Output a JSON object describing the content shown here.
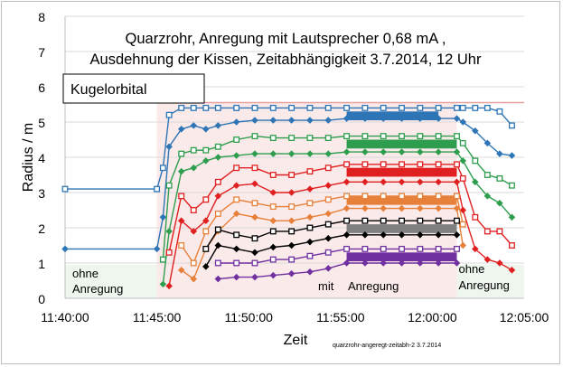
{
  "chart_data": {
    "type": "line",
    "title_line1": "Quarzrohr, Anregung mit Lautsprecher 0,68 mA ,",
    "title_line2": "Ausdehnung der Kissen, Zeitabhängigkeit 3.7.2014, 12 Uhr",
    "inset_label": "Kugelorbital",
    "xlabel": "Zeit",
    "ylabel": "Radius / m",
    "footnote": "quarzrohr-angeregt-zeitabh-2  3.7.2014",
    "xlim": [
      "11:40:00",
      "12:05:00"
    ],
    "x_ticks": [
      "11:40:00",
      "11:45:00",
      "11:50:00",
      "11:55:00",
      "12:00:00",
      "12:05:00"
    ],
    "ylim": [
      0,
      8
    ],
    "y_ticks": [
      "0",
      "1",
      "2",
      "3",
      "4",
      "5",
      "6",
      "7",
      "8"
    ],
    "grid": "horizontal",
    "regions": [
      {
        "label_lines": [
          "ohne",
          "Anregung"
        ],
        "from": "11:40:00",
        "to": "11:45:00",
        "color": "#eef6ee"
      },
      {
        "label_lines": [
          "mit",
          "Anregung"
        ],
        "from": "11:45:00",
        "to": "12:01:20",
        "color": "#fbeaea"
      },
      {
        "label_lines": [
          "ohne",
          "Anregung"
        ],
        "from": "12:01:20",
        "to": "12:05:00",
        "color": "#eef6ee"
      }
    ],
    "reference_line": {
      "y": 5.55,
      "color": "#e8a0a0"
    },
    "series": [
      {
        "color": "#2e75b6",
        "marker": "square",
        "x": [
          "11:40:00",
          "11:45:00",
          "11:45:20",
          "11:45:40",
          "11:46:20",
          "11:47:00",
          "11:47:40",
          "11:48:20",
          "11:49:20",
          "11:50:20",
          "11:51:20",
          "11:52:20",
          "11:53:20",
          "11:54:20",
          "11:55:20",
          "11:56:20",
          "11:57:20",
          "11:58:20",
          "11:59:20",
          "12:00:20",
          "12:01:20",
          "12:01:40",
          "12:02:20",
          "12:03:00",
          "12:03:40",
          "12:04:20"
        ],
        "y": [
          3.1,
          3.1,
          3.7,
          5.2,
          5.4,
          5.4,
          5.4,
          5.4,
          5.4,
          5.4,
          5.4,
          5.4,
          5.4,
          5.4,
          5.4,
          5.4,
          5.4,
          5.4,
          5.4,
          5.4,
          5.4,
          5.4,
          5.4,
          5.4,
          5.3,
          4.9
        ]
      },
      {
        "color": "#2e75b6",
        "marker": "diamond",
        "x": [
          "11:40:00",
          "11:45:00",
          "11:45:20",
          "11:45:40",
          "11:46:20",
          "11:47:00",
          "11:47:40",
          "11:48:20",
          "11:49:20",
          "11:50:20",
          "11:51:20",
          "11:52:20",
          "11:53:20",
          "11:54:20",
          "11:55:20",
          "11:56:20",
          "11:57:20",
          "11:58:20",
          "11:59:20",
          "12:00:20",
          "12:01:20",
          "12:01:40",
          "12:02:20",
          "12:03:00",
          "12:03:40",
          "12:04:20"
        ],
        "y": [
          1.4,
          1.4,
          2.3,
          4.3,
          4.8,
          4.9,
          4.8,
          4.9,
          5.0,
          5.05,
          5.05,
          5.05,
          5.05,
          5.05,
          5.1,
          5.1,
          5.1,
          5.1,
          5.1,
          5.1,
          5.1,
          5.0,
          4.75,
          4.4,
          4.1,
          4.05
        ]
      },
      {
        "color": "#2e9e4e",
        "marker": "square",
        "x": [
          "11:45:20",
          "11:45:40",
          "11:46:20",
          "11:47:00",
          "11:47:40",
          "11:48:20",
          "11:49:20",
          "11:50:20",
          "11:51:20",
          "11:52:20",
          "11:53:20",
          "11:54:20",
          "11:55:20",
          "11:56:20",
          "11:57:20",
          "11:58:20",
          "11:59:20",
          "12:00:20",
          "12:01:20",
          "12:01:40",
          "12:02:20",
          "12:03:00",
          "12:03:40",
          "12:04:20"
        ],
        "y": [
          1.1,
          3.2,
          4.1,
          4.2,
          4.2,
          4.3,
          4.5,
          4.6,
          4.55,
          4.55,
          4.55,
          4.55,
          4.6,
          4.6,
          4.6,
          4.6,
          4.6,
          4.6,
          4.6,
          4.4,
          3.9,
          3.5,
          3.4,
          3.2
        ]
      },
      {
        "color": "#2e9e4e",
        "marker": "diamond",
        "x": [
          "11:45:20",
          "11:45:40",
          "11:46:20",
          "11:47:00",
          "11:47:40",
          "11:48:20",
          "11:49:20",
          "11:50:20",
          "11:51:20",
          "11:52:20",
          "11:53:20",
          "11:54:20",
          "11:55:20",
          "11:56:20",
          "11:57:20",
          "11:58:20",
          "11:59:20",
          "12:00:20",
          "12:01:20",
          "12:01:40",
          "12:02:20",
          "12:03:00",
          "12:03:40",
          "12:04:20"
        ],
        "y": [
          0.4,
          1.9,
          3.6,
          3.7,
          3.9,
          4.0,
          4.05,
          4.1,
          4.1,
          4.1,
          4.1,
          4.1,
          4.15,
          4.15,
          4.15,
          4.15,
          4.15,
          4.15,
          4.15,
          3.9,
          3.3,
          2.9,
          2.7,
          2.3
        ]
      },
      {
        "color": "#e02020",
        "marker": "square",
        "x": [
          "11:45:40",
          "11:46:20",
          "11:47:00",
          "11:47:40",
          "11:48:20",
          "11:49:20",
          "11:50:20",
          "11:51:20",
          "11:52:20",
          "11:53:20",
          "11:54:20",
          "11:55:20",
          "11:56:20",
          "11:57:20",
          "11:58:20",
          "11:59:20",
          "12:00:20",
          "12:01:20",
          "12:01:40",
          "12:02:20",
          "12:03:00",
          "12:03:40",
          "12:04:20"
        ],
        "y": [
          1.3,
          2.9,
          2.5,
          2.8,
          3.3,
          3.7,
          3.7,
          3.5,
          3.5,
          3.6,
          3.7,
          3.8,
          3.8,
          3.8,
          3.8,
          3.8,
          3.8,
          3.8,
          3.4,
          2.3,
          1.9,
          1.9,
          1.5
        ]
      },
      {
        "color": "#e02020",
        "marker": "diamond",
        "x": [
          "11:45:40",
          "11:46:20",
          "11:47:00",
          "11:47:40",
          "11:48:20",
          "11:49:20",
          "11:50:20",
          "11:51:20",
          "11:52:20",
          "11:53:20",
          "11:54:20",
          "11:55:20",
          "11:56:20",
          "11:57:20",
          "11:58:20",
          "11:59:20",
          "12:00:20",
          "12:01:20",
          "12:01:40",
          "12:02:20",
          "12:03:00",
          "12:03:40",
          "12:04:20"
        ],
        "y": [
          0.35,
          2.2,
          1.9,
          2.2,
          2.9,
          3.2,
          3.25,
          3.0,
          3.0,
          3.1,
          3.2,
          3.3,
          3.3,
          3.3,
          3.3,
          3.3,
          3.3,
          3.3,
          2.5,
          1.4,
          1.1,
          1.0,
          0.8
        ]
      },
      {
        "color": "#e6803a",
        "marker": "square",
        "x": [
          "11:46:20",
          "11:47:00",
          "11:47:40",
          "11:48:20",
          "11:49:20",
          "11:50:20",
          "11:51:20",
          "11:52:20",
          "11:53:20",
          "11:54:20",
          "11:55:20",
          "11:56:20",
          "11:57:20",
          "11:58:20",
          "11:59:20",
          "12:00:20",
          "12:01:20",
          "12:01:40"
        ],
        "y": [
          1.5,
          1.0,
          1.9,
          2.4,
          2.8,
          2.7,
          2.6,
          2.6,
          2.7,
          2.8,
          2.9,
          2.9,
          2.9,
          2.9,
          2.9,
          2.9,
          2.9,
          2.1
        ]
      },
      {
        "color": "#e6803a",
        "marker": "diamond",
        "x": [
          "11:46:20",
          "11:47:00",
          "11:47:40",
          "11:48:20",
          "11:49:20",
          "11:50:20",
          "11:51:20",
          "11:52:20",
          "11:53:20",
          "11:54:20",
          "11:55:20",
          "11:56:20",
          "11:57:20",
          "11:58:20",
          "11:59:20",
          "12:00:20",
          "12:01:20",
          "12:01:40"
        ],
        "y": [
          0.8,
          0.55,
          1.4,
          1.9,
          2.4,
          2.3,
          2.2,
          2.2,
          2.3,
          2.4,
          2.55,
          2.55,
          2.55,
          2.55,
          2.55,
          2.55,
          2.55,
          1.5
        ]
      },
      {
        "color": "#000000",
        "marker": "square",
        "x": [
          "11:47:40",
          "11:48:20",
          "11:49:20",
          "11:50:20",
          "11:51:20",
          "11:52:20",
          "11:53:20",
          "11:54:20",
          "11:55:20",
          "11:56:20",
          "11:57:20",
          "11:58:20",
          "11:59:20",
          "12:00:20",
          "12:01:20"
        ],
        "y": [
          1.4,
          1.95,
          1.8,
          1.7,
          1.9,
          1.9,
          2.0,
          2.1,
          2.2,
          2.2,
          2.2,
          2.2,
          2.2,
          2.2,
          2.2
        ]
      },
      {
        "color": "#000000",
        "marker": "diamond",
        "x": [
          "11:47:40",
          "11:48:20",
          "11:49:20",
          "11:50:20",
          "11:51:20",
          "11:52:20",
          "11:53:20",
          "11:54:20",
          "11:55:20",
          "11:56:20",
          "11:57:20",
          "11:58:20",
          "11:59:20",
          "12:00:20",
          "12:01:20"
        ],
        "y": [
          0.9,
          1.5,
          1.4,
          1.3,
          1.45,
          1.5,
          1.6,
          1.7,
          1.8,
          1.8,
          1.8,
          1.8,
          1.8,
          1.8,
          1.8
        ]
      },
      {
        "color": "#7030a0",
        "marker": "square",
        "x": [
          "11:48:20",
          "11:49:20",
          "11:50:20",
          "11:51:20",
          "11:52:20",
          "11:53:20",
          "11:54:20",
          "11:55:20",
          "11:56:20",
          "11:57:20",
          "11:58:20",
          "11:59:20",
          "12:00:20",
          "12:01:20"
        ],
        "y": [
          1.0,
          1.0,
          1.0,
          1.1,
          1.1,
          1.2,
          1.3,
          1.4,
          1.4,
          1.4,
          1.4,
          1.4,
          1.4,
          1.4
        ]
      },
      {
        "color": "#7030a0",
        "marker": "diamond",
        "x": [
          "11:48:20",
          "11:49:20",
          "11:50:20",
          "11:51:20",
          "11:52:20",
          "11:53:20",
          "11:54:20",
          "11:55:20",
          "11:56:20",
          "11:57:20",
          "11:58:20",
          "11:59:20",
          "12:00:20",
          "12:01:20"
        ],
        "y": [
          0.55,
          0.6,
          0.6,
          0.65,
          0.7,
          0.75,
          0.85,
          1.0,
          1.0,
          1.0,
          1.0,
          1.0,
          1.0,
          1.0
        ]
      }
    ],
    "bands": [
      {
        "color": "#2e75b6",
        "from": "11:55:20",
        "to": "12:00:20",
        "y_low": 5.05,
        "y_high": 5.3
      },
      {
        "color": "#2e9e4e",
        "from": "11:55:20",
        "to": "12:01:20",
        "y_low": 4.25,
        "y_high": 4.5
      },
      {
        "color": "#e02020",
        "from": "11:55:20",
        "to": "12:01:20",
        "y_low": 3.45,
        "y_high": 3.7
      },
      {
        "color": "#e6803a",
        "from": "11:55:20",
        "to": "12:01:20",
        "y_low": 2.65,
        "y_high": 2.9
      },
      {
        "color": "#808080",
        "from": "11:55:20",
        "to": "12:01:20",
        "y_low": 1.85,
        "y_high": 2.1
      },
      {
        "color": "#7030a0",
        "from": "11:55:20",
        "to": "12:01:20",
        "y_low": 1.05,
        "y_high": 1.3
      }
    ]
  }
}
